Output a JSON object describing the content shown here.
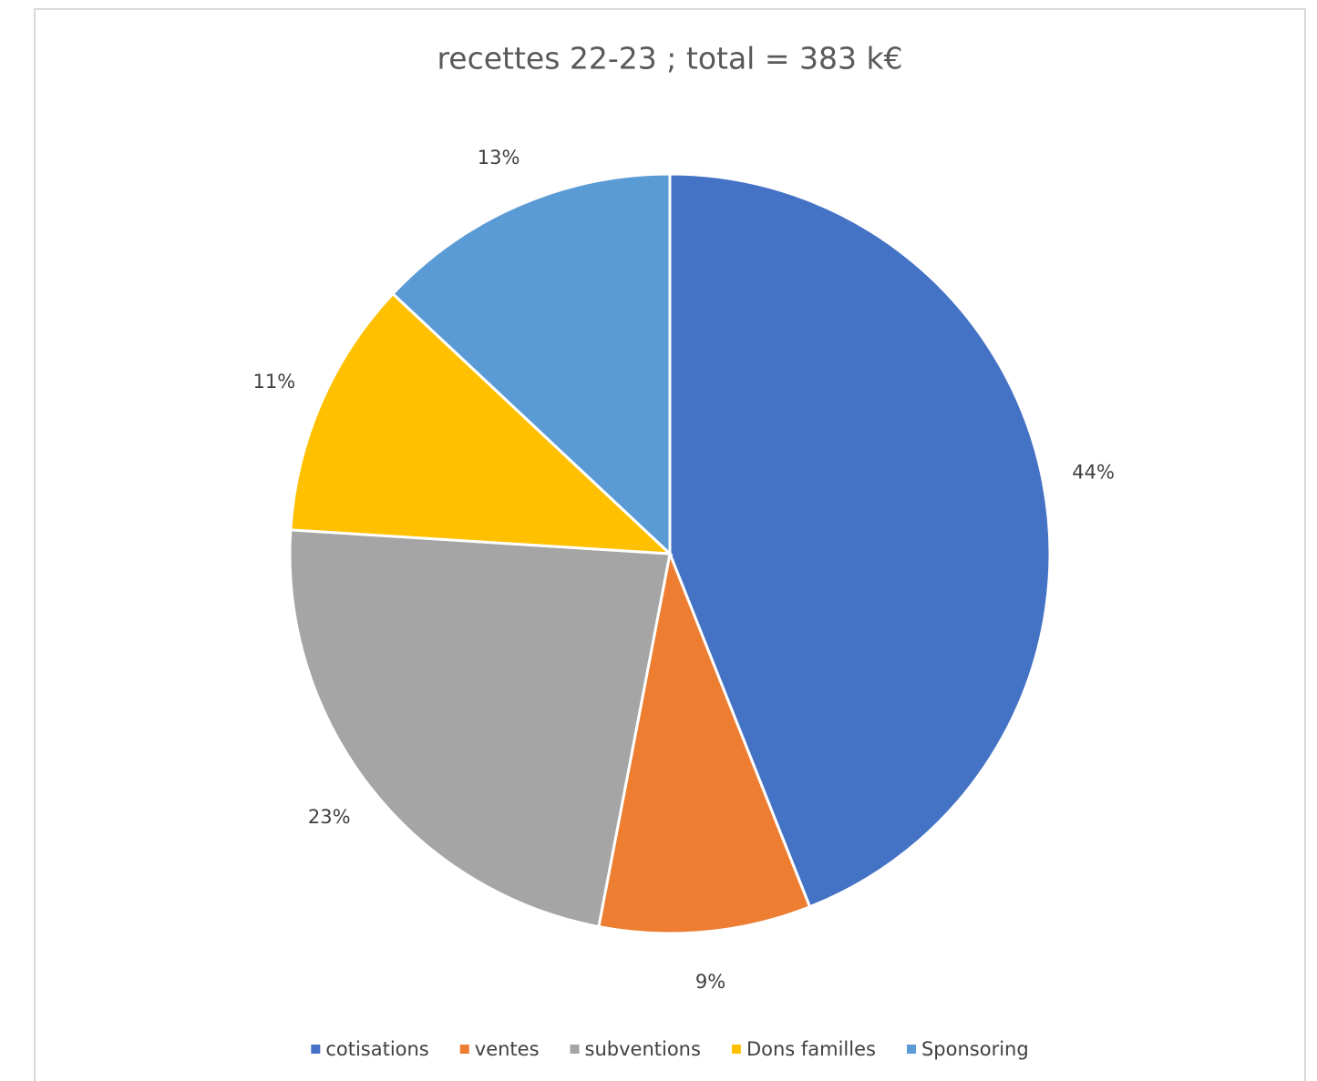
{
  "chart_data": {
    "type": "pie",
    "title": "recettes 22-23 ; total = 383 k€",
    "categories": [
      "cotisations",
      "ventes",
      "subventions",
      "Dons familles",
      "Sponsoring"
    ],
    "values": [
      44,
      9,
      23,
      11,
      13
    ],
    "value_labels": [
      "44%",
      "9%",
      "23%",
      "11%",
      "13%"
    ],
    "colors": [
      "#4472c4",
      "#ed7d31",
      "#a5a5a5",
      "#ffc000",
      "#5b9bd5"
    ],
    "legend": "bottom"
  }
}
